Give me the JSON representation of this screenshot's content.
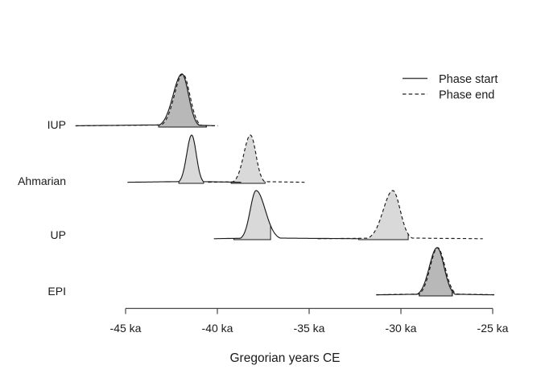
{
  "figure": {
    "background": "#ffffff",
    "colors": {
      "curve_line": "#1a1a1a",
      "axis_line": "#454545",
      "text": "#1a1a1a",
      "single_fill": "#d9d9d9",
      "overlap_fill": "#b9b9b9",
      "fill_rgba": "rgba(0,0,0,0.15)"
    },
    "legend": [
      {
        "label": "Phase start",
        "style": "solid"
      },
      {
        "label": "Phase end",
        "style": "dashed"
      }
    ]
  },
  "chart_data": {
    "type": "area",
    "subtype": "density-ridges",
    "title": "",
    "xlabel": "Gregorian years CE",
    "ylabel": "",
    "x_unit": "ka",
    "xlim_ka": [
      -48,
      -24.8
    ],
    "grid": false,
    "legend_position": "top-right",
    "legend": [
      "Phase start",
      "Phase end"
    ],
    "x_ticks": [
      {
        "value": -45,
        "label": "-45 ka"
      },
      {
        "value": -40,
        "label": "-40 ka"
      },
      {
        "value": -35,
        "label": "-35 ka"
      },
      {
        "value": -30,
        "label": "-30 ka"
      },
      {
        "value": -25,
        "label": "-25 ka"
      }
    ],
    "rows": [
      {
        "label": "IUP",
        "note": "start and end densities almost coincide; darker overlapping fill; long shallow left tail",
        "curves": [
          {
            "name": "start",
            "style": "solid",
            "peak_ka": -41.93,
            "sigma_left": 0.48,
            "sigma_right": 0.36,
            "reach_left": 5.8,
            "reach_right": 1.8,
            "tail_amp": 0.045,
            "fill_ka": [
              -43.2,
              -40.6
            ]
          },
          {
            "name": "end",
            "style": "dashed",
            "peak_ka": -41.88,
            "sigma_left": 0.46,
            "sigma_right": 0.38,
            "reach_left": 5.85,
            "reach_right": 1.9,
            "tail_amp": 0.042,
            "fill_ka": [
              -43.2,
              -40.6
            ]
          }
        ]
      },
      {
        "label": "Ahmarian",
        "note": "separate start and end peaks",
        "curves": [
          {
            "name": "start",
            "style": "solid",
            "peak_ka": -41.4,
            "sigma_left": 0.27,
            "sigma_right": 0.25,
            "reach_left": 3.5,
            "reach_right": 2.7,
            "tail_amp": 0.04,
            "fill_ka": [
              -42.1,
              -40.75
            ]
          },
          {
            "name": "end",
            "style": "dashed",
            "peak_ka": -38.2,
            "sigma_left": 0.36,
            "sigma_right": 0.3,
            "reach_left": 2.3,
            "reach_right": 2.95,
            "tail_amp": 0.04,
            "fill_ka": [
              -39.25,
              -37.4
            ]
          }
        ]
      },
      {
        "label": "UP",
        "note": "widely separated start and end peaks",
        "curves": [
          {
            "name": "start",
            "style": "solid",
            "peak_ka": -37.89,
            "sigma_left": 0.32,
            "sigma_right": 0.5,
            "reach_left": 2.3,
            "reach_right": 5.6,
            "tail_amp": 0.035,
            "fill_ka": [
              -39.1,
              -37.1
            ]
          },
          {
            "name": "end",
            "style": "dashed",
            "peak_ka": -30.44,
            "sigma_left": 0.52,
            "sigma_right": 0.4,
            "reach_left": 4.1,
            "reach_right": 4.9,
            "tail_amp": 0.035,
            "fill_ka": [
              -32.3,
              -29.6
            ]
          }
        ]
      },
      {
        "label": "EPI",
        "note": "start and end densities almost coincide; darker overlapping fill",
        "curves": [
          {
            "name": "start",
            "style": "solid",
            "peak_ka": -28.03,
            "sigma_left": 0.42,
            "sigma_right": 0.38,
            "reach_left": 3.3,
            "reach_right": 3.1,
            "tail_amp": 0.04,
            "fill_ka": [
              -29.0,
              -27.2
            ]
          },
          {
            "name": "end",
            "style": "dashed",
            "peak_ka": -28.0,
            "sigma_left": 0.4,
            "sigma_right": 0.4,
            "reach_left": 3.35,
            "reach_right": 3.15,
            "tail_amp": 0.045,
            "fill_ka": [
              -29.0,
              -27.2
            ]
          }
        ]
      }
    ]
  }
}
